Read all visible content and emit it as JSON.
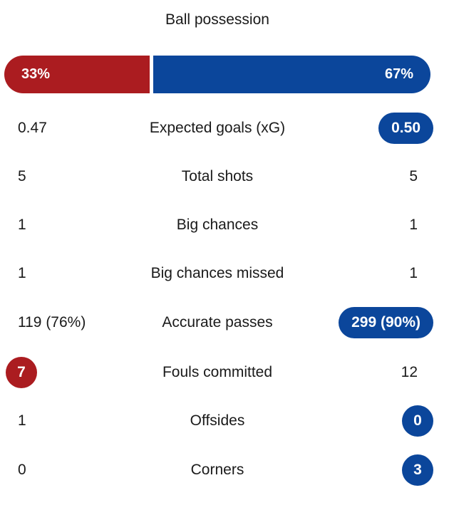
{
  "colors": {
    "home": "#ab1c20",
    "away": "#0b469b"
  },
  "possession": {
    "label": "Ball possession",
    "home": "33%",
    "away": "67%",
    "home_fraction": 0.33
  },
  "stats": [
    {
      "label": "Expected goals (xG)",
      "home": "0.47",
      "away": "0.50",
      "highlight": "away"
    },
    {
      "label": "Total shots",
      "home": "5",
      "away": "5",
      "highlight": "none"
    },
    {
      "label": "Big chances",
      "home": "1",
      "away": "1",
      "highlight": "none"
    },
    {
      "label": "Big chances missed",
      "home": "1",
      "away": "1",
      "highlight": "none"
    },
    {
      "label": "Accurate passes",
      "home": "119 (76%)",
      "away": "299 (90%)",
      "highlight": "away"
    },
    {
      "label": "Fouls committed",
      "home": "7",
      "away": "12",
      "highlight": "home"
    },
    {
      "label": "Offsides",
      "home": "1",
      "away": "0",
      "highlight": "away"
    },
    {
      "label": "Corners",
      "home": "0",
      "away": "3",
      "highlight": "away"
    }
  ]
}
